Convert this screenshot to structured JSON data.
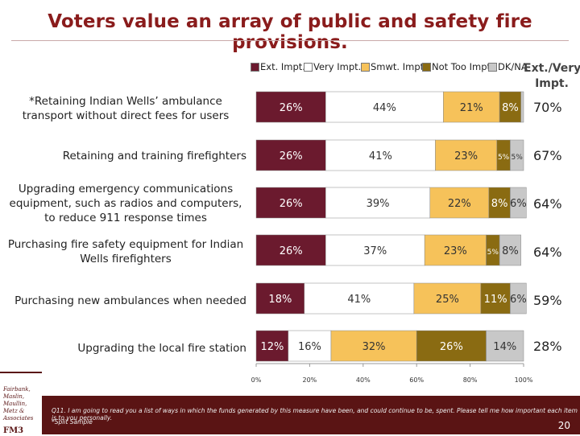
{
  "title": "Voters value an array of public and safety fire provisions.",
  "legend": [
    {
      "label": "Ext. Impt.",
      "color": "#6b1a2e"
    },
    {
      "label": "Very Impt.",
      "color": "#ffffff"
    },
    {
      "label": "Smwt. Impt.",
      "color": "#f6c25a"
    },
    {
      "label": "Not Too Impt.",
      "color": "#8a6b12"
    },
    {
      "label": "DK/NA",
      "color": "#c8c8c8"
    }
  ],
  "ext_header": "Ext./Very Impt.",
  "chart_data": {
    "type": "bar",
    "orientation": "horizontal",
    "stacked": true,
    "categories": [
      "*Retaining Indian Wells’ ambulance transport without direct fees for users",
      "Retaining and training firefighters",
      "Upgrading emergency communications equipment, such as radios and computers, to reduce 911 response times",
      "Purchasing fire safety equipment for Indian Wells firefighters",
      "Purchasing new ambulances when needed",
      "Upgrading the local fire station"
    ],
    "series": [
      {
        "name": "Ext. Impt.",
        "values": [
          26,
          26,
          26,
          26,
          18,
          12
        ],
        "labels": [
          "26%",
          "26%",
          "26%",
          "26%",
          "18%",
          "12%"
        ]
      },
      {
        "name": "Very Impt.",
        "values": [
          44,
          41,
          39,
          37,
          41,
          16
        ],
        "labels": [
          "44%",
          "41%",
          "39%",
          "37%",
          "41%",
          "16%"
        ]
      },
      {
        "name": "Smwt. Impt.",
        "values": [
          21,
          23,
          22,
          23,
          25,
          32
        ],
        "labels": [
          "21%",
          "23%",
          "22%",
          "23%",
          "25%",
          "32%"
        ]
      },
      {
        "name": "Not Too Impt.",
        "values": [
          8,
          5,
          8,
          5,
          11,
          26
        ],
        "labels": [
          "8%",
          "5%",
          "8%",
          "5%",
          "11%",
          "26%"
        ]
      },
      {
        "name": "DK/NA",
        "values": [
          1,
          5,
          6,
          8,
          6,
          14
        ],
        "labels": [
          "",
          "5%",
          "6%",
          "8%",
          "6%",
          "14%"
        ]
      }
    ],
    "ext_very_totals": [
      "70%",
      "67%",
      "64%",
      "64%",
      "59%",
      "28%"
    ],
    "x_ticks": [
      "0%",
      "20%",
      "40%",
      "60%",
      "80%",
      "100%"
    ],
    "xlim": [
      0,
      100
    ]
  },
  "footnote": "Q11. I am going to read you a list of ways in which the funds generated by this measure have been, and could continue to be, spent. Please tell me how important each item is to you personally.",
  "footnote_2": "*Split Sample",
  "page_number": "20",
  "logo_text": "Fairbank, Maslin, Maullin, Metz & Associates",
  "logo_mark": "FM3"
}
